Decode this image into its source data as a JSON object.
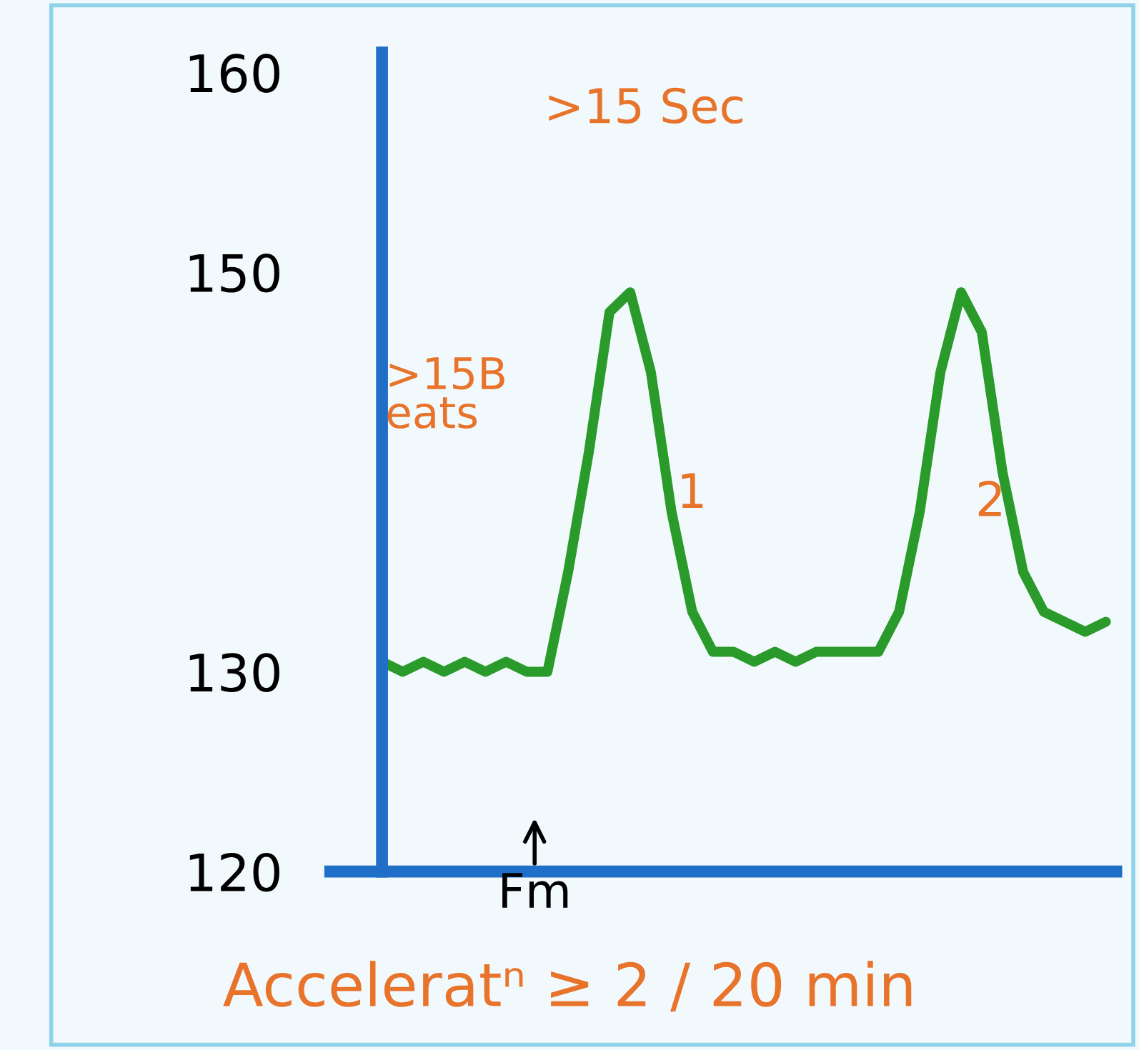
{
  "chart_data": {
    "type": "line",
    "categories": [
      null,
      null,
      null,
      null,
      null,
      null,
      null,
      null,
      null,
      null,
      null,
      null,
      null,
      null,
      null,
      null,
      null,
      null,
      null,
      null,
      null,
      null,
      null,
      null,
      null,
      null,
      null,
      null,
      null,
      null,
      null,
      null,
      null,
      null,
      null,
      null
    ],
    "series": [
      {
        "color": "#2a9a2a",
        "values": [
          130.5,
          130,
          130.5,
          130,
          130.5,
          130,
          130.5,
          130,
          130,
          135,
          141,
          148,
          149,
          145,
          138,
          133,
          131,
          131,
          130.5,
          131,
          130.5,
          131,
          131,
          131,
          131,
          133,
          138,
          145,
          149,
          147,
          140,
          135,
          133,
          132.5,
          132,
          132.5
        ]
      }
    ],
    "ylim": [
      120,
      161
    ],
    "yticks": [
      120,
      130,
      150,
      160
    ],
    "grid": false,
    "legend": false,
    "marker": "none",
    "line_style": "solid",
    "annotations": [
      ">15 Sec",
      ">15B\neats",
      "1",
      "2",
      "Fm",
      "Acceleratⁿ ≥ 2 / 20 min"
    ]
  }
}
